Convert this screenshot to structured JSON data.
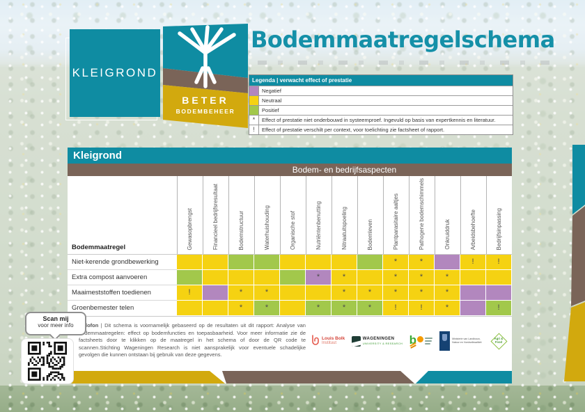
{
  "colors": {
    "teal": "#0F8CA2",
    "brown": "#7A6458",
    "gold": "#D2A90E",
    "title_teal": "#1590A8",
    "cell_negative": "#B287BE",
    "cell_neutral": "#F5D212",
    "cell_positive": "#A2C84B"
  },
  "header": {
    "title": "Bodemmaatregelschema",
    "soil_logo_text": "KLEIGROND",
    "brand_line1": "BETER",
    "brand_line2": "BODEMBEHEER"
  },
  "legend": {
    "header": "Legenda | verwacht effect of prestatie",
    "items": [
      {
        "symbol": "",
        "color": "#B287BE",
        "label": "Negatief"
      },
      {
        "symbol": "",
        "color": "#F5D212",
        "label": "Neutraal"
      },
      {
        "symbol": "",
        "color": "#A2C84B",
        "label": "Positief"
      },
      {
        "symbol": "*",
        "color": "",
        "label": "Effect of prestatie niet onderbouwd in systeemproef. Ingevuld op basis van expertkennis en literatuur."
      },
      {
        "symbol": "!",
        "color": "",
        "label": "Effect of prestatie verschilt per context, voor toelichting zie factsheet of rapport."
      }
    ]
  },
  "panel": {
    "region_header": "Kleigrond",
    "aspects_header": "Bodem- en bedrijfsaspecten",
    "row_header": "Bodemmaatregel"
  },
  "matrix": {
    "columns": [
      "Gewasopbrengst",
      "Financieel bedrijfsresultaat",
      "Bodemstructuur",
      "Waterhuishouding",
      "Organische stof",
      "Nutriëntenbenutting",
      "Nitraatuitspoeling",
      "Bodemleven",
      "Plantparasitaire aaltjes",
      "Pathogene bodemschimmels",
      "Onkruiddruk",
      "Arbeidsbehoefte",
      "Bedrijfsinpassing"
    ],
    "cell_colors": {
      "negative": "#B287BE",
      "neutral": "#F5D212",
      "positive": "#A2C84B"
    },
    "rows": [
      {
        "label": "Niet-kerende grondbewerking",
        "cells": [
          {
            "v": "neutral",
            "s": ""
          },
          {
            "v": "neutral",
            "s": ""
          },
          {
            "v": "positive",
            "s": ""
          },
          {
            "v": "positive",
            "s": ""
          },
          {
            "v": "neutral",
            "s": ""
          },
          {
            "v": "neutral",
            "s": ""
          },
          {
            "v": "neutral",
            "s": ""
          },
          {
            "v": "positive",
            "s": ""
          },
          {
            "v": "neutral",
            "s": "*"
          },
          {
            "v": "neutral",
            "s": "*"
          },
          {
            "v": "negative",
            "s": ""
          },
          {
            "v": "neutral",
            "s": "!"
          },
          {
            "v": "neutral",
            "s": "!"
          }
        ]
      },
      {
        "label": "Extra compost aanvoeren",
        "cells": [
          {
            "v": "positive",
            "s": ""
          },
          {
            "v": "neutral",
            "s": ""
          },
          {
            "v": "neutral",
            "s": ""
          },
          {
            "v": "neutral",
            "s": ""
          },
          {
            "v": "positive",
            "s": ""
          },
          {
            "v": "negative",
            "s": "*"
          },
          {
            "v": "neutral",
            "s": "*"
          },
          {
            "v": "neutral",
            "s": ""
          },
          {
            "v": "neutral",
            "s": "*"
          },
          {
            "v": "neutral",
            "s": "*"
          },
          {
            "v": "neutral",
            "s": "*"
          },
          {
            "v": "neutral",
            "s": ""
          },
          {
            "v": "neutral",
            "s": ""
          }
        ]
      },
      {
        "label": "Maaimeststoffen toedienen",
        "cells": [
          {
            "v": "neutral",
            "s": "!"
          },
          {
            "v": "negative",
            "s": ""
          },
          {
            "v": "neutral",
            "s": "*"
          },
          {
            "v": "neutral",
            "s": "*"
          },
          {
            "v": "neutral",
            "s": ""
          },
          {
            "v": "neutral",
            "s": ""
          },
          {
            "v": "neutral",
            "s": "*"
          },
          {
            "v": "neutral",
            "s": "*"
          },
          {
            "v": "neutral",
            "s": "*"
          },
          {
            "v": "neutral",
            "s": "*"
          },
          {
            "v": "neutral",
            "s": "*"
          },
          {
            "v": "negative",
            "s": ""
          },
          {
            "v": "negative",
            "s": ""
          }
        ]
      },
      {
        "label": "Groenbemester telen",
        "cells": [
          {
            "v": "neutral",
            "s": ""
          },
          {
            "v": "neutral",
            "s": ""
          },
          {
            "v": "neutral",
            "s": "*"
          },
          {
            "v": "positive",
            "s": "*"
          },
          {
            "v": "neutral",
            "s": ""
          },
          {
            "v": "positive",
            "s": "*"
          },
          {
            "v": "positive",
            "s": "*"
          },
          {
            "v": "positive",
            "s": "*"
          },
          {
            "v": "neutral",
            "s": "!"
          },
          {
            "v": "neutral",
            "s": "!"
          },
          {
            "v": "neutral",
            "s": "*"
          },
          {
            "v": "negative",
            "s": ""
          },
          {
            "v": "positive",
            "s": "!"
          }
        ]
      }
    ]
  },
  "colofon": {
    "label": "Colofon",
    "text": "| Dit schema is voornamelijk gebaseerd op de resultaten uit dit rapport: Analyse van bodemmaatregelen: effect op bodemfuncties en toepasbaarheid. Voor meer informatie zie de factsheets door te klikken op de maatregel in het schema of door de QR code te scannen.Stichting Wageningen Research is niet aansprakelijk voor eventuele schadelijke gevolgen die kunnen ontstaan bij gebruik van deze gegevens."
  },
  "qr": {
    "bubble_line1": "Scan mij",
    "bubble_line2": "voor meer info"
  },
  "logos": {
    "louis_bolk": {
      "line1": "Louis Bolk",
      "line2": "Instituut"
    },
    "wageningen": {
      "line1": "WAGENINGEN",
      "line2": "UNIVERSITY & RESEARCH"
    },
    "beter_bodembeheer_bo": {
      "text": "b"
    },
    "ministerie": {
      "line1": "Ministerie van Landbouw,",
      "line2": "Natuur en Voedselkwaliteit"
    },
    "topsector": {
      "line1": "Agri &",
      "line2": "Food"
    }
  }
}
